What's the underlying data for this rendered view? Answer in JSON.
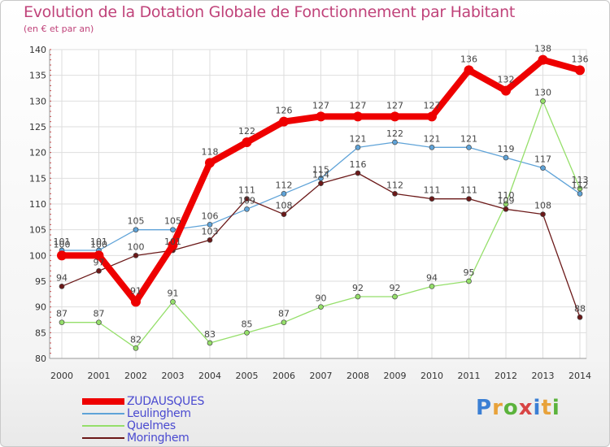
{
  "title": "Evolution de la Dotation Globale de Fonctionnement par Habitant",
  "subtitle": "(en € et par an)",
  "brand": [
    "P",
    "r",
    "o",
    "x",
    "i",
    "t",
    "i"
  ],
  "brand_colors": [
    "#3b7fd4",
    "#e8a23a",
    "#5bb33c",
    "#d84545",
    "#3b7fd4",
    "#e8a23a",
    "#5bb33c"
  ],
  "chart_data": {
    "type": "line",
    "title": "Evolution de la Dotation Globale de Fonctionnement par Habitant",
    "xlabel": "",
    "ylabel": "(en € et par an)",
    "ylim": [
      80,
      140
    ],
    "yticks": [
      80,
      85,
      90,
      95,
      100,
      105,
      110,
      115,
      120,
      125,
      130,
      135,
      140
    ],
    "grid": true,
    "legend_position": "bottom-left",
    "x": [
      "2000",
      "2001",
      "2002",
      "2003",
      "2004",
      "2005",
      "2006",
      "2007",
      "2008",
      "2009",
      "2010",
      "2011",
      "2012",
      "2013",
      "2014"
    ],
    "series": [
      {
        "name": "ZUDAUSQUES",
        "color": "#ee0000",
        "emphasis": true,
        "values": [
          100,
          100,
          91,
          102,
          118,
          122,
          126,
          127,
          127,
          127,
          127,
          136,
          132,
          138,
          136
        ],
        "labels": [
          "100",
          "100",
          "91",
          "",
          "118",
          "122",
          "126",
          "127",
          "127",
          "127",
          "127",
          "136",
          "132",
          "138",
          "136"
        ]
      },
      {
        "name": "Leulinghem",
        "color": "#5fa3d8",
        "emphasis": false,
        "values": [
          101,
          101,
          105,
          105,
          106,
          109,
          112,
          115,
          121,
          122,
          121,
          121,
          119,
          117,
          112
        ],
        "labels": [
          "101",
          "101",
          "105",
          "105",
          "106",
          "109",
          "112",
          "115",
          "121",
          "122",
          "121",
          "121",
          "119",
          "117",
          "112"
        ]
      },
      {
        "name": "Quelmes",
        "color": "#95df6a",
        "emphasis": false,
        "values": [
          87,
          87,
          82,
          91,
          83,
          85,
          87,
          90,
          92,
          92,
          94,
          95,
          110,
          130,
          113
        ],
        "labels": [
          "87",
          "87",
          "82",
          "91",
          "83",
          "85",
          "87",
          "90",
          "92",
          "92",
          "94",
          "95",
          "110",
          "130",
          "113"
        ]
      },
      {
        "name": "Moringhem",
        "color": "#6b1818",
        "emphasis": false,
        "values": [
          94,
          97,
          100,
          101,
          103,
          111,
          108,
          114,
          116,
          112,
          111,
          111,
          109,
          108,
          88
        ],
        "labels": [
          "94",
          "97",
          "100",
          "101",
          "103",
          "111",
          "108",
          "114",
          "116",
          "112",
          "111",
          "111",
          "109",
          "108",
          "88"
        ]
      }
    ]
  }
}
